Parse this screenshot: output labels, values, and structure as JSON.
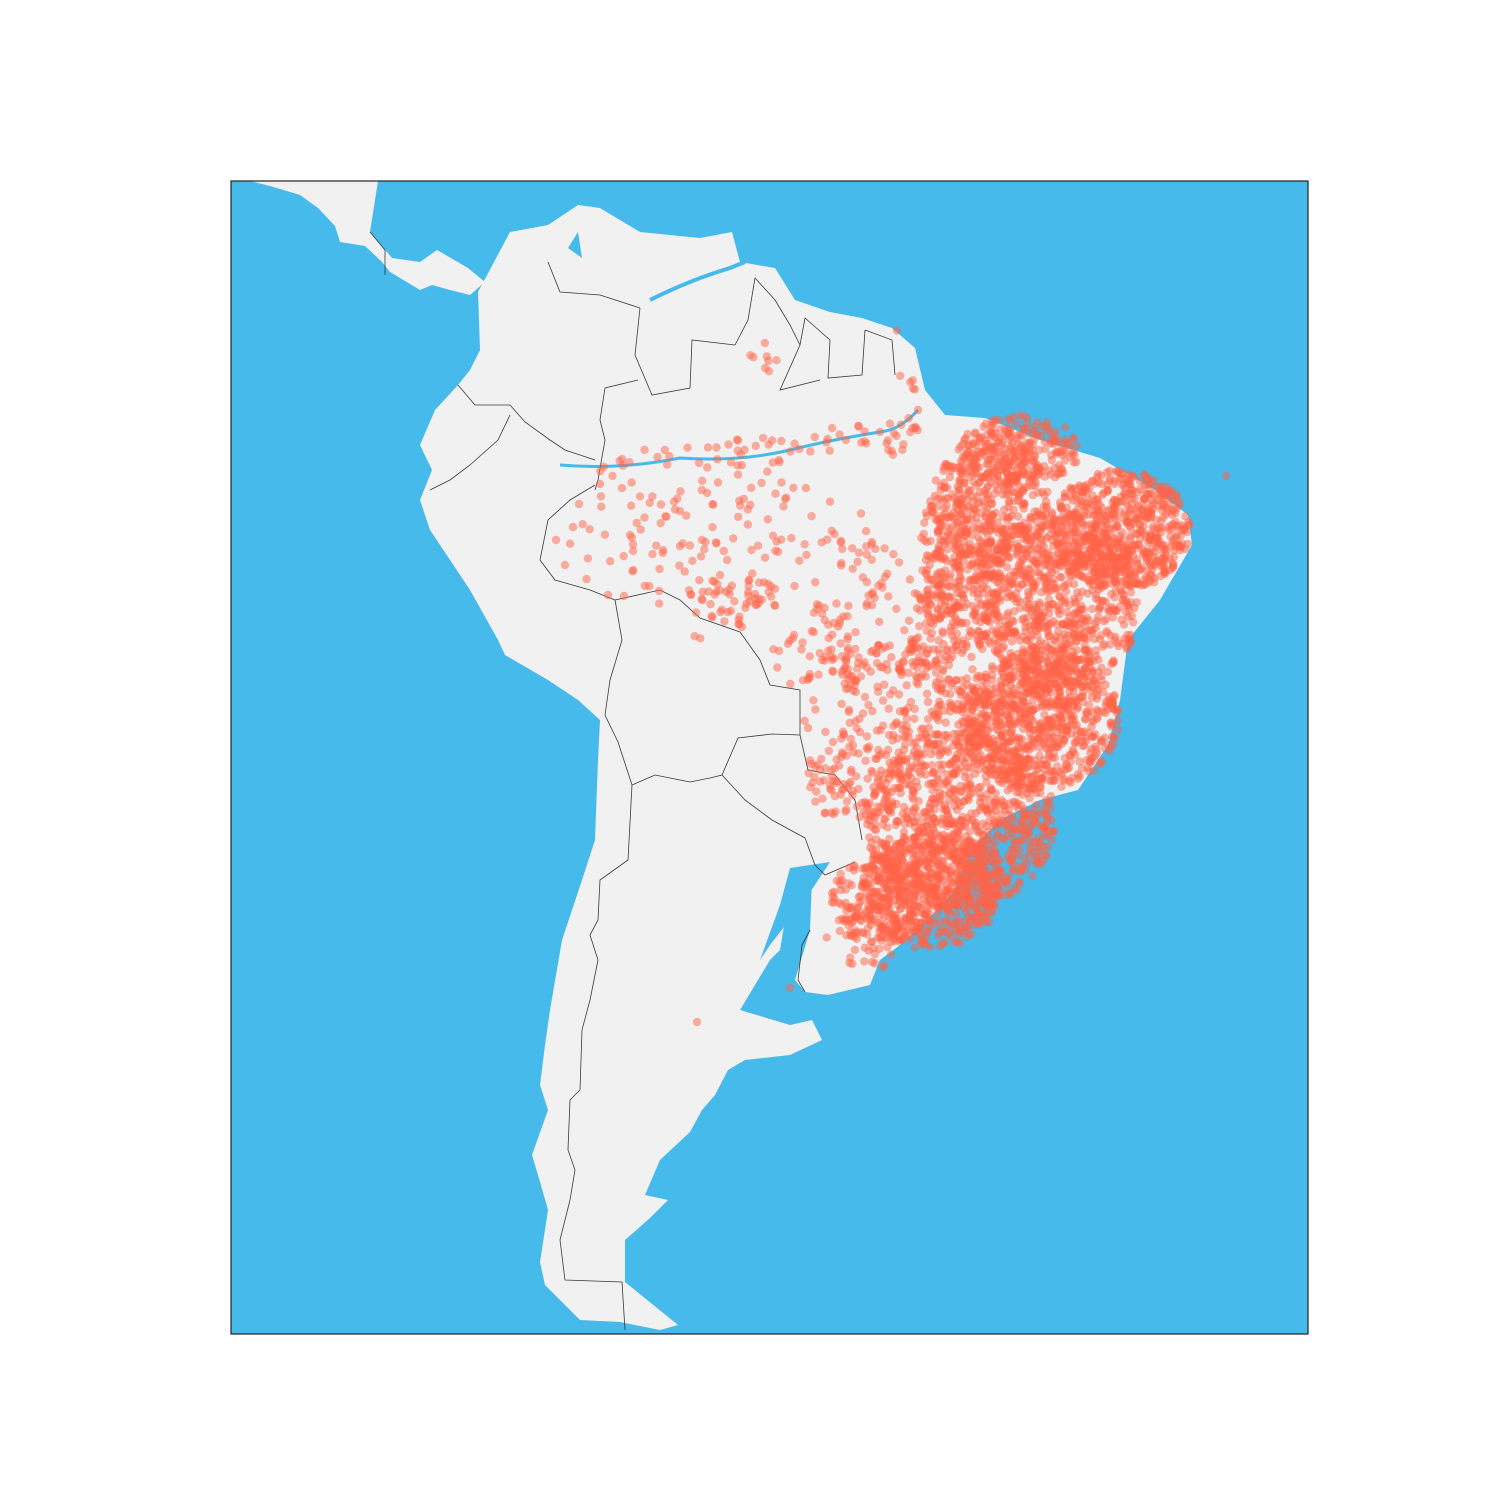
{
  "map": {
    "type": "scatter-map",
    "region": "South America",
    "colors": {
      "ocean": "#46BAEA",
      "land": "#F1F1F1",
      "border": "#3a3a3a",
      "points": "#FF6347",
      "frame": "#222222",
      "background": "#FFFFFF"
    },
    "point_opacity": 0.5,
    "seed": 7
  },
  "chart_data": {
    "type": "scatter",
    "marker_color": "#FF6347",
    "alpha": 0.5,
    "points_per_cluster_unit": 1,
    "clusters": [
      {
        "name": "northeast-coast",
        "density": "very-high"
      },
      {
        "name": "southeast",
        "density": "very-high"
      },
      {
        "name": "south",
        "density": "high"
      },
      {
        "name": "central-west",
        "density": "medium"
      },
      {
        "name": "amazon-river",
        "density": "low"
      },
      {
        "name": "amazon-interior",
        "density": "sparse"
      },
      {
        "name": "north-roraima",
        "density": "sparse"
      },
      {
        "name": "outliers",
        "density": "single"
      }
    ]
  }
}
